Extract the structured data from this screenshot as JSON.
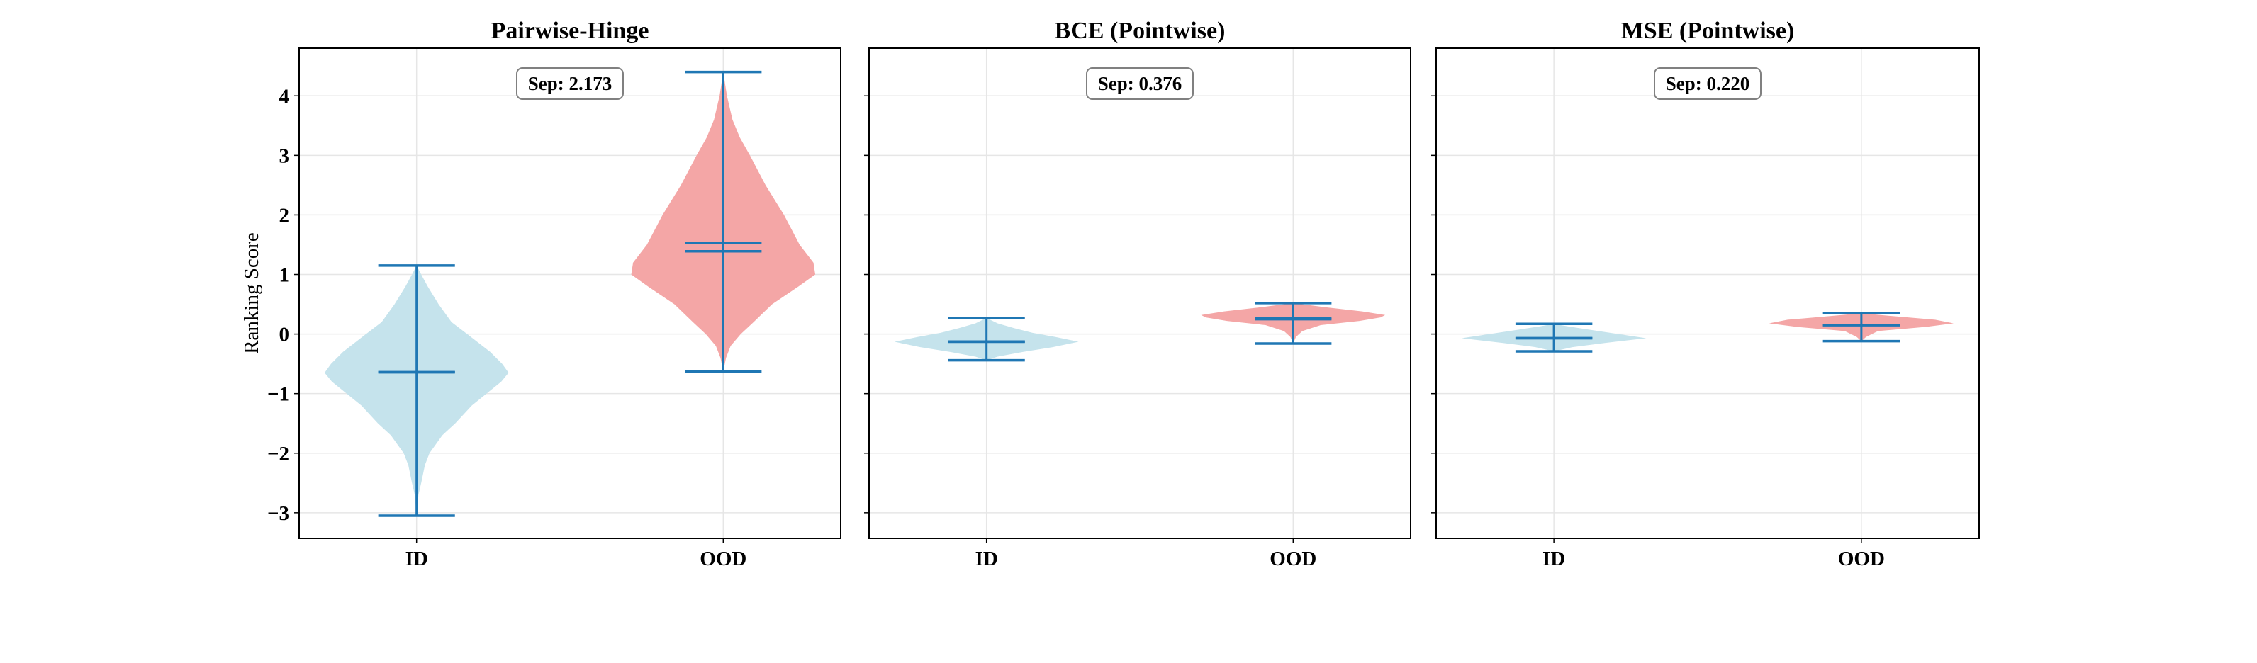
{
  "chart_data": [
    {
      "type": "violin",
      "title": "Pairwise-Hinge",
      "ylabel": "Ranking Score",
      "ylim": [
        -3.43,
        4.8
      ],
      "yticks": [
        -3,
        -2,
        -1,
        0,
        1,
        2,
        3,
        4
      ],
      "ytick_labels": [
        "−3",
        "−2",
        "−1",
        "0",
        "1",
        "2",
        "3",
        "4"
      ],
      "categories": [
        "ID",
        "OOD"
      ],
      "grid": true,
      "annotation": "Sep: 2.173",
      "series": [
        {
          "name": "ID",
          "color": "#c5e3ec",
          "min": -3.05,
          "max": 1.15,
          "mean": -0.643,
          "median": -0.64,
          "density": [
            [
              -3.05,
              0
            ],
            [
              -2.7,
              0.02
            ],
            [
              -2.5,
              0.05
            ],
            [
              -2.2,
              0.09
            ],
            [
              -2,
              0.14
            ],
            [
              -1.7,
              0.28
            ],
            [
              -1.5,
              0.42
            ],
            [
              -1.2,
              0.6
            ],
            [
              -1,
              0.76
            ],
            [
              -0.8,
              0.92
            ],
            [
              -0.65,
              1.0
            ],
            [
              -0.5,
              0.93
            ],
            [
              -0.3,
              0.8
            ],
            [
              0,
              0.55
            ],
            [
              0.2,
              0.38
            ],
            [
              0.5,
              0.24
            ],
            [
              0.8,
              0.12
            ],
            [
              1.0,
              0.05
            ],
            [
              1.15,
              0
            ]
          ]
        },
        {
          "name": "OOD",
          "color": "#f4a6a6",
          "min": -0.63,
          "max": 4.4,
          "mean": 1.53,
          "median": 1.39,
          "density": [
            [
              -0.63,
              0
            ],
            [
              -0.4,
              0.03
            ],
            [
              -0.2,
              0.08
            ],
            [
              0,
              0.19
            ],
            [
              0.2,
              0.33
            ],
            [
              0.5,
              0.53
            ],
            [
              0.8,
              0.82
            ],
            [
              1.0,
              1.0
            ],
            [
              1.2,
              0.98
            ],
            [
              1.5,
              0.83
            ],
            [
              2.0,
              0.66
            ],
            [
              2.5,
              0.46
            ],
            [
              3.0,
              0.29
            ],
            [
              3.3,
              0.18
            ],
            [
              3.6,
              0.1
            ],
            [
              4.0,
              0.04
            ],
            [
              4.4,
              0
            ]
          ]
        }
      ]
    },
    {
      "type": "violin",
      "title": "BCE (Pointwise)",
      "ylim": [
        -3.43,
        4.8
      ],
      "yticks": [
        -3,
        -2,
        -1,
        0,
        1,
        2,
        3,
        4
      ],
      "categories": [
        "ID",
        "OOD"
      ],
      "grid": true,
      "annotation": "Sep: 0.376",
      "series": [
        {
          "name": "ID",
          "color": "#c5e3ec",
          "min": -0.44,
          "max": 0.27,
          "mean": -0.126,
          "median": -0.13,
          "density": [
            [
              -0.44,
              0
            ],
            [
              -0.38,
              0.12
            ],
            [
              -0.3,
              0.4
            ],
            [
              -0.22,
              0.72
            ],
            [
              -0.13,
              1.0
            ],
            [
              -0.05,
              0.75
            ],
            [
              0.02,
              0.5
            ],
            [
              0.1,
              0.3
            ],
            [
              0.18,
              0.12
            ],
            [
              0.27,
              0
            ]
          ]
        },
        {
          "name": "OOD",
          "color": "#f4a6a6",
          "min": -0.16,
          "max": 0.52,
          "mean": 0.25,
          "median": 0.26,
          "density": [
            [
              -0.16,
              0
            ],
            [
              -0.05,
              0.03
            ],
            [
              0.05,
              0.1
            ],
            [
              0.15,
              0.3
            ],
            [
              0.22,
              0.72
            ],
            [
              0.28,
              0.95
            ],
            [
              0.32,
              1.0
            ],
            [
              0.38,
              0.75
            ],
            [
              0.45,
              0.35
            ],
            [
              0.52,
              0
            ]
          ]
        }
      ]
    },
    {
      "type": "violin",
      "title": "MSE (Pointwise)",
      "ylim": [
        -3.43,
        4.8
      ],
      "yticks": [
        -3,
        -2,
        -1,
        0,
        1,
        2,
        3,
        4
      ],
      "categories": [
        "ID",
        "OOD"
      ],
      "grid": true,
      "annotation": "Sep: 0.220",
      "series": [
        {
          "name": "ID",
          "color": "#c5e3ec",
          "min": -0.29,
          "max": 0.17,
          "mean": -0.07,
          "median": -0.07,
          "density": [
            [
              -0.29,
              0
            ],
            [
              -0.22,
              0.2
            ],
            [
              -0.15,
              0.55
            ],
            [
              -0.07,
              1.0
            ],
            [
              0.0,
              0.7
            ],
            [
              0.07,
              0.4
            ],
            [
              0.13,
              0.15
            ],
            [
              0.17,
              0
            ]
          ]
        },
        {
          "name": "OOD",
          "color": "#f4a6a6",
          "min": -0.12,
          "max": 0.35,
          "mean": 0.15,
          "median": 0.15,
          "density": [
            [
              -0.12,
              0
            ],
            [
              -0.05,
              0.05
            ],
            [
              0.05,
              0.18
            ],
            [
              0.12,
              0.7
            ],
            [
              0.18,
              1.0
            ],
            [
              0.24,
              0.8
            ],
            [
              0.3,
              0.35
            ],
            [
              0.35,
              0
            ]
          ]
        }
      ]
    }
  ],
  "colors": {
    "line": "#1f77b4",
    "grid": "#e6e6e6"
  }
}
